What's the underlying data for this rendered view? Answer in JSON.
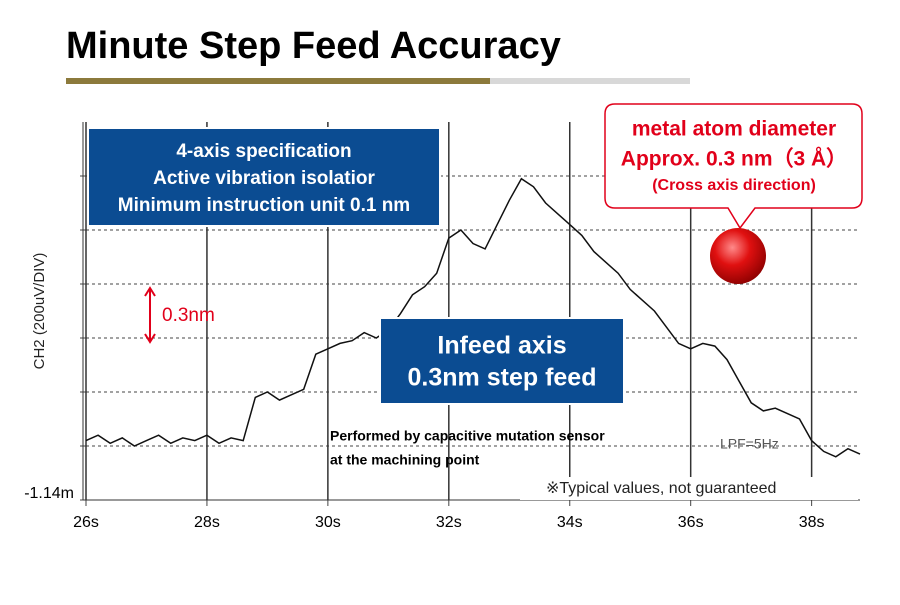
{
  "chart_data": {
    "type": "line",
    "title": "Minute Step Feed Accuracy",
    "y_label": "CH2 (200uV/DIV)",
    "color": "#111111",
    "x": [
      26.0,
      26.2,
      26.4,
      26.6,
      26.8,
      27.0,
      27.2,
      27.4,
      27.6,
      27.8,
      28.0,
      28.2,
      28.4,
      28.6,
      28.8,
      29.0,
      29.2,
      29.4,
      29.6,
      29.8,
      30.0,
      30.2,
      30.4,
      30.6,
      30.8,
      31.0,
      31.2,
      31.4,
      31.6,
      31.8,
      32.0,
      32.2,
      32.4,
      32.6,
      32.8,
      33.0,
      33.2,
      33.4,
      33.6,
      33.8,
      34.0,
      34.2,
      34.4,
      34.6,
      34.8,
      35.0,
      35.2,
      35.4,
      35.6,
      35.8,
      36.0,
      36.2,
      36.4,
      36.6,
      36.8,
      37.0,
      37.2,
      37.4,
      37.6,
      37.8,
      38.0,
      38.2,
      38.4,
      38.6,
      38.8
    ],
    "values": [
      -0.92,
      -0.9,
      -0.93,
      -0.91,
      -0.94,
      -0.92,
      -0.9,
      -0.93,
      -0.91,
      -0.92,
      -0.9,
      -0.93,
      -0.91,
      -0.92,
      -0.76,
      -0.74,
      -0.77,
      -0.75,
      -0.73,
      -0.6,
      -0.58,
      -0.56,
      -0.55,
      -0.52,
      -0.54,
      -0.51,
      -0.45,
      -0.38,
      -0.35,
      -0.3,
      -0.17,
      -0.14,
      -0.19,
      -0.21,
      -0.12,
      -0.03,
      0.05,
      0.02,
      -0.04,
      -0.08,
      -0.12,
      -0.16,
      -0.22,
      -0.26,
      -0.3,
      -0.36,
      -0.4,
      -0.44,
      -0.5,
      -0.56,
      -0.58,
      -0.56,
      -0.57,
      -0.62,
      -0.7,
      -0.78,
      -0.81,
      -0.8,
      -0.82,
      -0.84,
      -0.92,
      -0.96,
      -0.98,
      -0.95,
      -0.97
    ],
    "xlim": [
      26,
      38.8
    ],
    "xticks": [
      {
        "value": 26,
        "label": "26s"
      },
      {
        "value": 28,
        "label": "28s"
      },
      {
        "value": 30,
        "label": "30s"
      },
      {
        "value": 32,
        "label": "32s"
      },
      {
        "value": 34,
        "label": "34s"
      },
      {
        "value": 36,
        "label": "36s"
      },
      {
        "value": 38,
        "label": "38s"
      }
    ],
    "ylim": [
      -1.14,
      0.26
    ],
    "yticks": [
      {
        "value": -1.14,
        "label": "-1.14m"
      },
      {
        "value": -0.94,
        "label": null
      },
      {
        "value": -0.74,
        "label": null
      },
      {
        "value": -0.54,
        "label": null
      },
      {
        "value": -0.34,
        "label": null
      },
      {
        "value": -0.14,
        "label": null
      },
      {
        "value": 0.06,
        "label": null
      }
    ],
    "grid": true,
    "annotations": {
      "spec_box": [
        "4-axis specification",
        "Active vibration isolatior",
        "Minimum instruction unit 0.1 nm"
      ],
      "feed_box": [
        "Infeed axis",
        "0.3nm step feed"
      ],
      "callout": [
        "metal atom diameter",
        "Approx. 0.3 nm（3 Å）",
        "(Cross axis direction)"
      ],
      "step_marker": "0.3nm",
      "sensor_note": [
        "Performed by capacitive mutation sensor",
        "at the machining point"
      ],
      "filter": "LPF=5Hz",
      "disclaimer": "※Typical values, not guaranteed"
    }
  }
}
